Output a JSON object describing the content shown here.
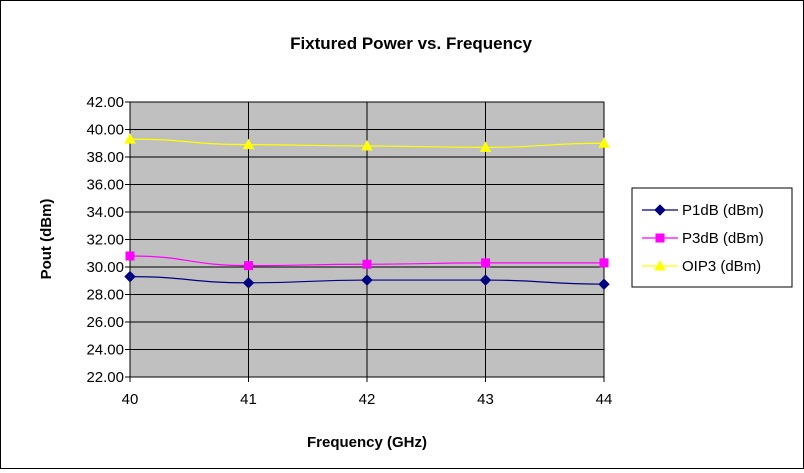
{
  "chart_data": {
    "type": "line",
    "title": "Fixtured Power vs. Frequency",
    "xlabel": "Frequency (GHz)",
    "ylabel": "Pout (dBm)",
    "x": [
      40,
      41,
      42,
      43,
      44
    ],
    "x_tick_labels": [
      "40",
      "41",
      "42",
      "43",
      "44"
    ],
    "ylim": [
      22,
      42
    ],
    "y_ticks": [
      22,
      24,
      26,
      28,
      30,
      32,
      34,
      36,
      38,
      40,
      42
    ],
    "y_tick_labels": [
      "22.00",
      "24.00",
      "26.00",
      "28.00",
      "30.00",
      "32.00",
      "34.00",
      "36.00",
      "38.00",
      "40.00",
      "42.00"
    ],
    "grid": true,
    "plot_background": "#c0c0c0",
    "legend_position": "right",
    "series": [
      {
        "name": "P1dB (dBm)",
        "color": "#000080",
        "marker": "diamond",
        "values": [
          29.3,
          28.85,
          29.05,
          29.05,
          28.75
        ]
      },
      {
        "name": "P3dB (dBm)",
        "color": "#ff00ff",
        "marker": "square",
        "values": [
          30.8,
          30.1,
          30.2,
          30.3,
          30.3
        ]
      },
      {
        "name": "OIP3 (dBm)",
        "color": "#ffff00",
        "marker": "triangle",
        "values": [
          39.3,
          38.9,
          38.8,
          38.7,
          39.0
        ]
      }
    ]
  }
}
